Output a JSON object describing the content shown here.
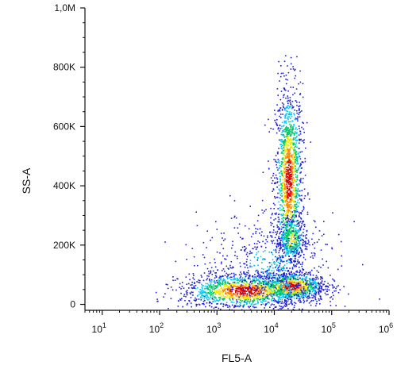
{
  "chart_data": {
    "type": "scatter",
    "subtype": "flow-cytometry density dot plot",
    "title": "",
    "xlabel": "FL5-A",
    "ylabel": "SS-A",
    "x_scale": "log",
    "y_scale": "linear",
    "xlim": [
      5,
      1000000
    ],
    "ylim": [
      -20000,
      1000000
    ],
    "x_tick_labels": [
      {
        "value": 10,
        "base": "10",
        "exp": "1"
      },
      {
        "value": 100,
        "base": "10",
        "exp": "2"
      },
      {
        "value": 1000,
        "base": "10",
        "exp": "3"
      },
      {
        "value": 10000,
        "base": "10",
        "exp": "4"
      },
      {
        "value": 100000,
        "base": "10",
        "exp": "5"
      },
      {
        "value": 1000000,
        "base": "10",
        "exp": "6"
      }
    ],
    "y_tick_labels": [
      {
        "value": 0,
        "label": "0"
      },
      {
        "value": 200000,
        "label": "200K"
      },
      {
        "value": 400000,
        "label": "400K"
      },
      {
        "value": 600000,
        "label": "600K"
      },
      {
        "value": 800000,
        "label": "800K"
      },
      {
        "value": 1000000,
        "label": "1,0M"
      }
    ],
    "grid": false,
    "color_scale": [
      "#1f1fd6",
      "#00c8f0",
      "#00c864",
      "#f0e600",
      "#ff8800",
      "#d90000"
    ],
    "populations": [
      {
        "x_center": 18000,
        "x_spread_decades": 0.12,
        "y_center": 420000,
        "y_spread": 160000,
        "count": 1500,
        "peak_density": "high"
      },
      {
        "x_center": 20000,
        "x_spread_decades": 0.14,
        "y_center": 220000,
        "y_spread": 45000,
        "count": 350,
        "peak_density": "medium"
      },
      {
        "x_center": 20000,
        "x_spread_decades": 0.3,
        "y_center": 60000,
        "y_spread": 25000,
        "count": 900,
        "peak_density": "high"
      },
      {
        "x_center": 3000,
        "x_spread_decades": 0.55,
        "y_center": 45000,
        "y_spread": 30000,
        "count": 1400,
        "peak_density": "high"
      },
      {
        "x_center": 8000,
        "x_spread_decades": 0.6,
        "y_center": 140000,
        "y_spread": 80000,
        "count": 500,
        "peak_density": "low"
      }
    ]
  }
}
